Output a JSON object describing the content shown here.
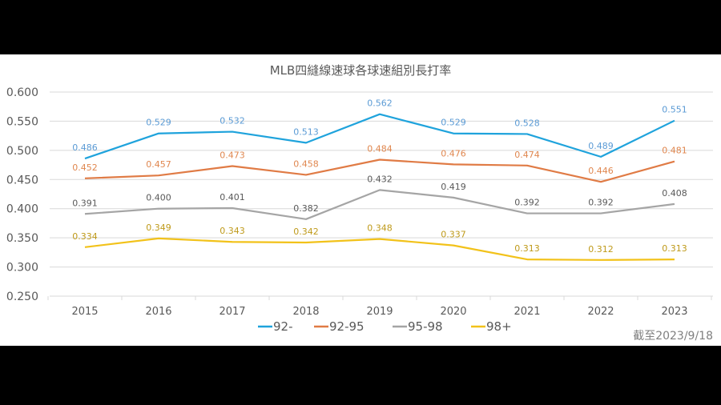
{
  "chart_data": {
    "type": "line",
    "title": "MLB四縫線速球各球速組別長打率",
    "xlabel": "",
    "ylabel": "",
    "categories": [
      "2015",
      "2016",
      "2017",
      "2018",
      "2019",
      "2020",
      "2021",
      "2022",
      "2023"
    ],
    "ylim": [
      0.25,
      0.6
    ],
    "yticks": [
      "0.600",
      "0.550",
      "0.500",
      "0.450",
      "0.400",
      "0.350",
      "0.300",
      "0.250"
    ],
    "ytick_values": [
      0.6,
      0.55,
      0.5,
      0.45,
      0.4,
      0.35,
      0.3,
      0.25
    ],
    "grid": true,
    "legend_position": "bottom",
    "series": [
      {
        "name": "92-",
        "color": "#1fa3dc",
        "label_color": "#5b9bd5",
        "values": [
          0.486,
          0.529,
          0.532,
          0.513,
          0.562,
          0.529,
          0.528,
          0.489,
          0.551
        ],
        "labels": [
          "0.486",
          "0.529",
          "0.532",
          "0.513",
          "0.562",
          "0.529",
          "0.528",
          "0.489",
          "0.551"
        ]
      },
      {
        "name": "92-95",
        "color": "#e07b45",
        "label_color": "#e0874f",
        "values": [
          0.452,
          0.457,
          0.473,
          0.458,
          0.484,
          0.476,
          0.474,
          0.446,
          0.481
        ],
        "labels": [
          "0.452",
          "0.457",
          "0.473",
          "0.458",
          "0.484",
          "0.476",
          "0.474",
          "0.446",
          "0.481"
        ]
      },
      {
        "name": "95-98",
        "color": "#a5a5a5",
        "label_color": "#595959",
        "values": [
          0.391,
          0.4,
          0.401,
          0.382,
          0.432,
          0.419,
          0.392,
          0.392,
          0.408
        ],
        "labels": [
          "0.391",
          "0.400",
          "0.401",
          "0.382",
          "0.432",
          "0.419",
          "0.392",
          "0.392",
          "0.408"
        ]
      },
      {
        "name": "98+",
        "color": "#f2c21a",
        "label_color": "#bf9a1a",
        "values": [
          0.334,
          0.349,
          0.343,
          0.342,
          0.348,
          0.337,
          0.313,
          0.312,
          0.313
        ],
        "labels": [
          "0.334",
          "0.349",
          "0.343",
          "0.342",
          "0.348",
          "0.337",
          "0.313",
          "0.312",
          "0.313"
        ]
      }
    ],
    "annotation": "截至2023/9/18"
  }
}
